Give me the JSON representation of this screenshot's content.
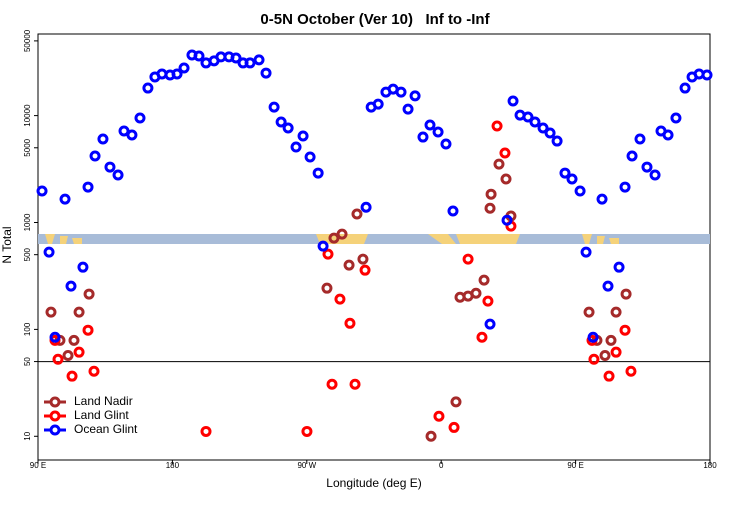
{
  "chart_data": {
    "type": "scatter",
    "title": "0-5N October (Ver 10)   Inf to -Inf",
    "x_label": "Longitude (deg E)",
    "y_label": "N Total",
    "log_y": true,
    "xlim": [
      90,
      540
    ],
    "ylim": [
      6,
      58000
    ],
    "xticks": [
      {
        "value": 90,
        "label": "90 E"
      },
      180,
      {
        "value": 270,
        "label": "90 W"
      },
      {
        "value": 360,
        "label": "0"
      },
      {
        "value": 450,
        "label": "90 E"
      },
      {
        "value": 540,
        "label": "180"
      }
    ],
    "yticks": [
      10,
      50,
      100,
      500,
      1000,
      5000,
      10000,
      50000
    ],
    "reference_line": 50,
    "legend": "bottom-left",
    "series": [
      {
        "name": "Land Nadir",
        "color": "#a52a2a",
        "x": [
          98.7,
          104.7,
          110.1,
          114.1,
          117.5,
          124.2,
          283.5,
          288.2,
          293.6,
          298.3,
          303.6,
          307.6,
          353.2,
          369.9,
          372.6,
          378.0,
          383.3,
          388.7,
          392.7,
          393.4,
          398.7,
          403.4,
          406.7,
          459.0,
          464.3,
          469.7,
          473.7,
          477.1,
          483.8
        ],
        "values": [
          145,
          79,
          57,
          79,
          145,
          214,
          243,
          714,
          779,
          399,
          1200,
          454,
          10,
          21,
          200,
          205,
          218,
          289,
          1360,
          1840,
          3520,
          2550,
          1150,
          145,
          79,
          57,
          79,
          145,
          214
        ]
      },
      {
        "name": "Land Glint",
        "color": "#ff0000",
        "x": [
          101.4,
          103.4,
          112.8,
          117.5,
          123.5,
          127.5,
          202.5,
          270.1,
          284.2,
          286.9,
          292.2,
          298.9,
          302.3,
          309.0,
          358.5,
          368.6,
          378.0,
          387.3,
          391.3,
          397.4,
          402.7,
          406.7,
          461.0,
          462.3,
          472.4,
          477.1,
          483.1,
          487.1
        ],
        "values": [
          79,
          52.6,
          36.5,
          61.2,
          98.3,
          40.6,
          11.1,
          11.1,
          506,
          30.7,
          192,
          114,
          30.7,
          358,
          15.4,
          12.1,
          454,
          84.5,
          184,
          8000,
          4470,
          925,
          79,
          52.6,
          36.5,
          61.2,
          98.3,
          40.6
        ]
      },
      {
        "name": "Ocean Glint",
        "color": "#0000ff",
        "x": [
          92.7,
          97.4,
          101.4,
          108.1,
          112.1,
          120.1,
          123.5,
          128.2,
          133.5,
          138.2,
          143.6,
          147.6,
          152.9,
          158.3,
          163.6,
          168.3,
          173.0,
          178.4,
          183.1,
          187.8,
          193.1,
          197.8,
          202.5,
          207.9,
          212.5,
          217.9,
          222.6,
          227.3,
          232.0,
          238.0,
          242.7,
          248.1,
          252.8,
          257.5,
          262.8,
          267.5,
          272.2,
          277.6,
          280.9,
          309.7,
          313.1,
          317.8,
          323.0,
          327.8,
          333.1,
          337.8,
          342.5,
          347.8,
          352.5,
          357.9,
          363.2,
          367.9,
          392.7,
          404.1,
          408.1,
          412.8,
          418.1,
          422.8,
          428.2,
          432.9,
          437.6,
          442.9,
          447.6,
          453.0,
          457.0,
          461.7,
          467.7,
          471.7,
          479.1,
          483.1,
          487.8,
          493.1,
          497.8,
          503.2,
          507.2,
          511.9,
          517.2,
          523.3,
          528.0,
          532.7,
          538.0
        ],
        "values": [
          1970,
          528,
          84.5,
          1656,
          254,
          382,
          2145,
          4190,
          6040,
          3300,
          2780,
          7180,
          6580,
          9500,
          18100,
          23000,
          24500,
          24000,
          24500,
          27900,
          36900,
          36100,
          31100,
          32500,
          35400,
          35400,
          34600,
          31100,
          31100,
          33200,
          25000,
          12000,
          8710,
          7660,
          5080,
          6440,
          4100,
          2900,
          601,
          1390,
          12000,
          12800,
          16600,
          17700,
          16600,
          11500,
          15300,
          6300,
          8170,
          7020,
          5420,
          1280,
          112,
          1050,
          13700,
          10100,
          9710,
          8710,
          7660,
          6870,
          5780,
          2900,
          2550,
          1970,
          528,
          84.5,
          1656,
          254,
          382,
          2145,
          4190,
          6040,
          3300,
          2780,
          7180,
          6580,
          9500,
          18100,
          23000,
          24500,
          24000
        ]
      }
    ]
  }
}
